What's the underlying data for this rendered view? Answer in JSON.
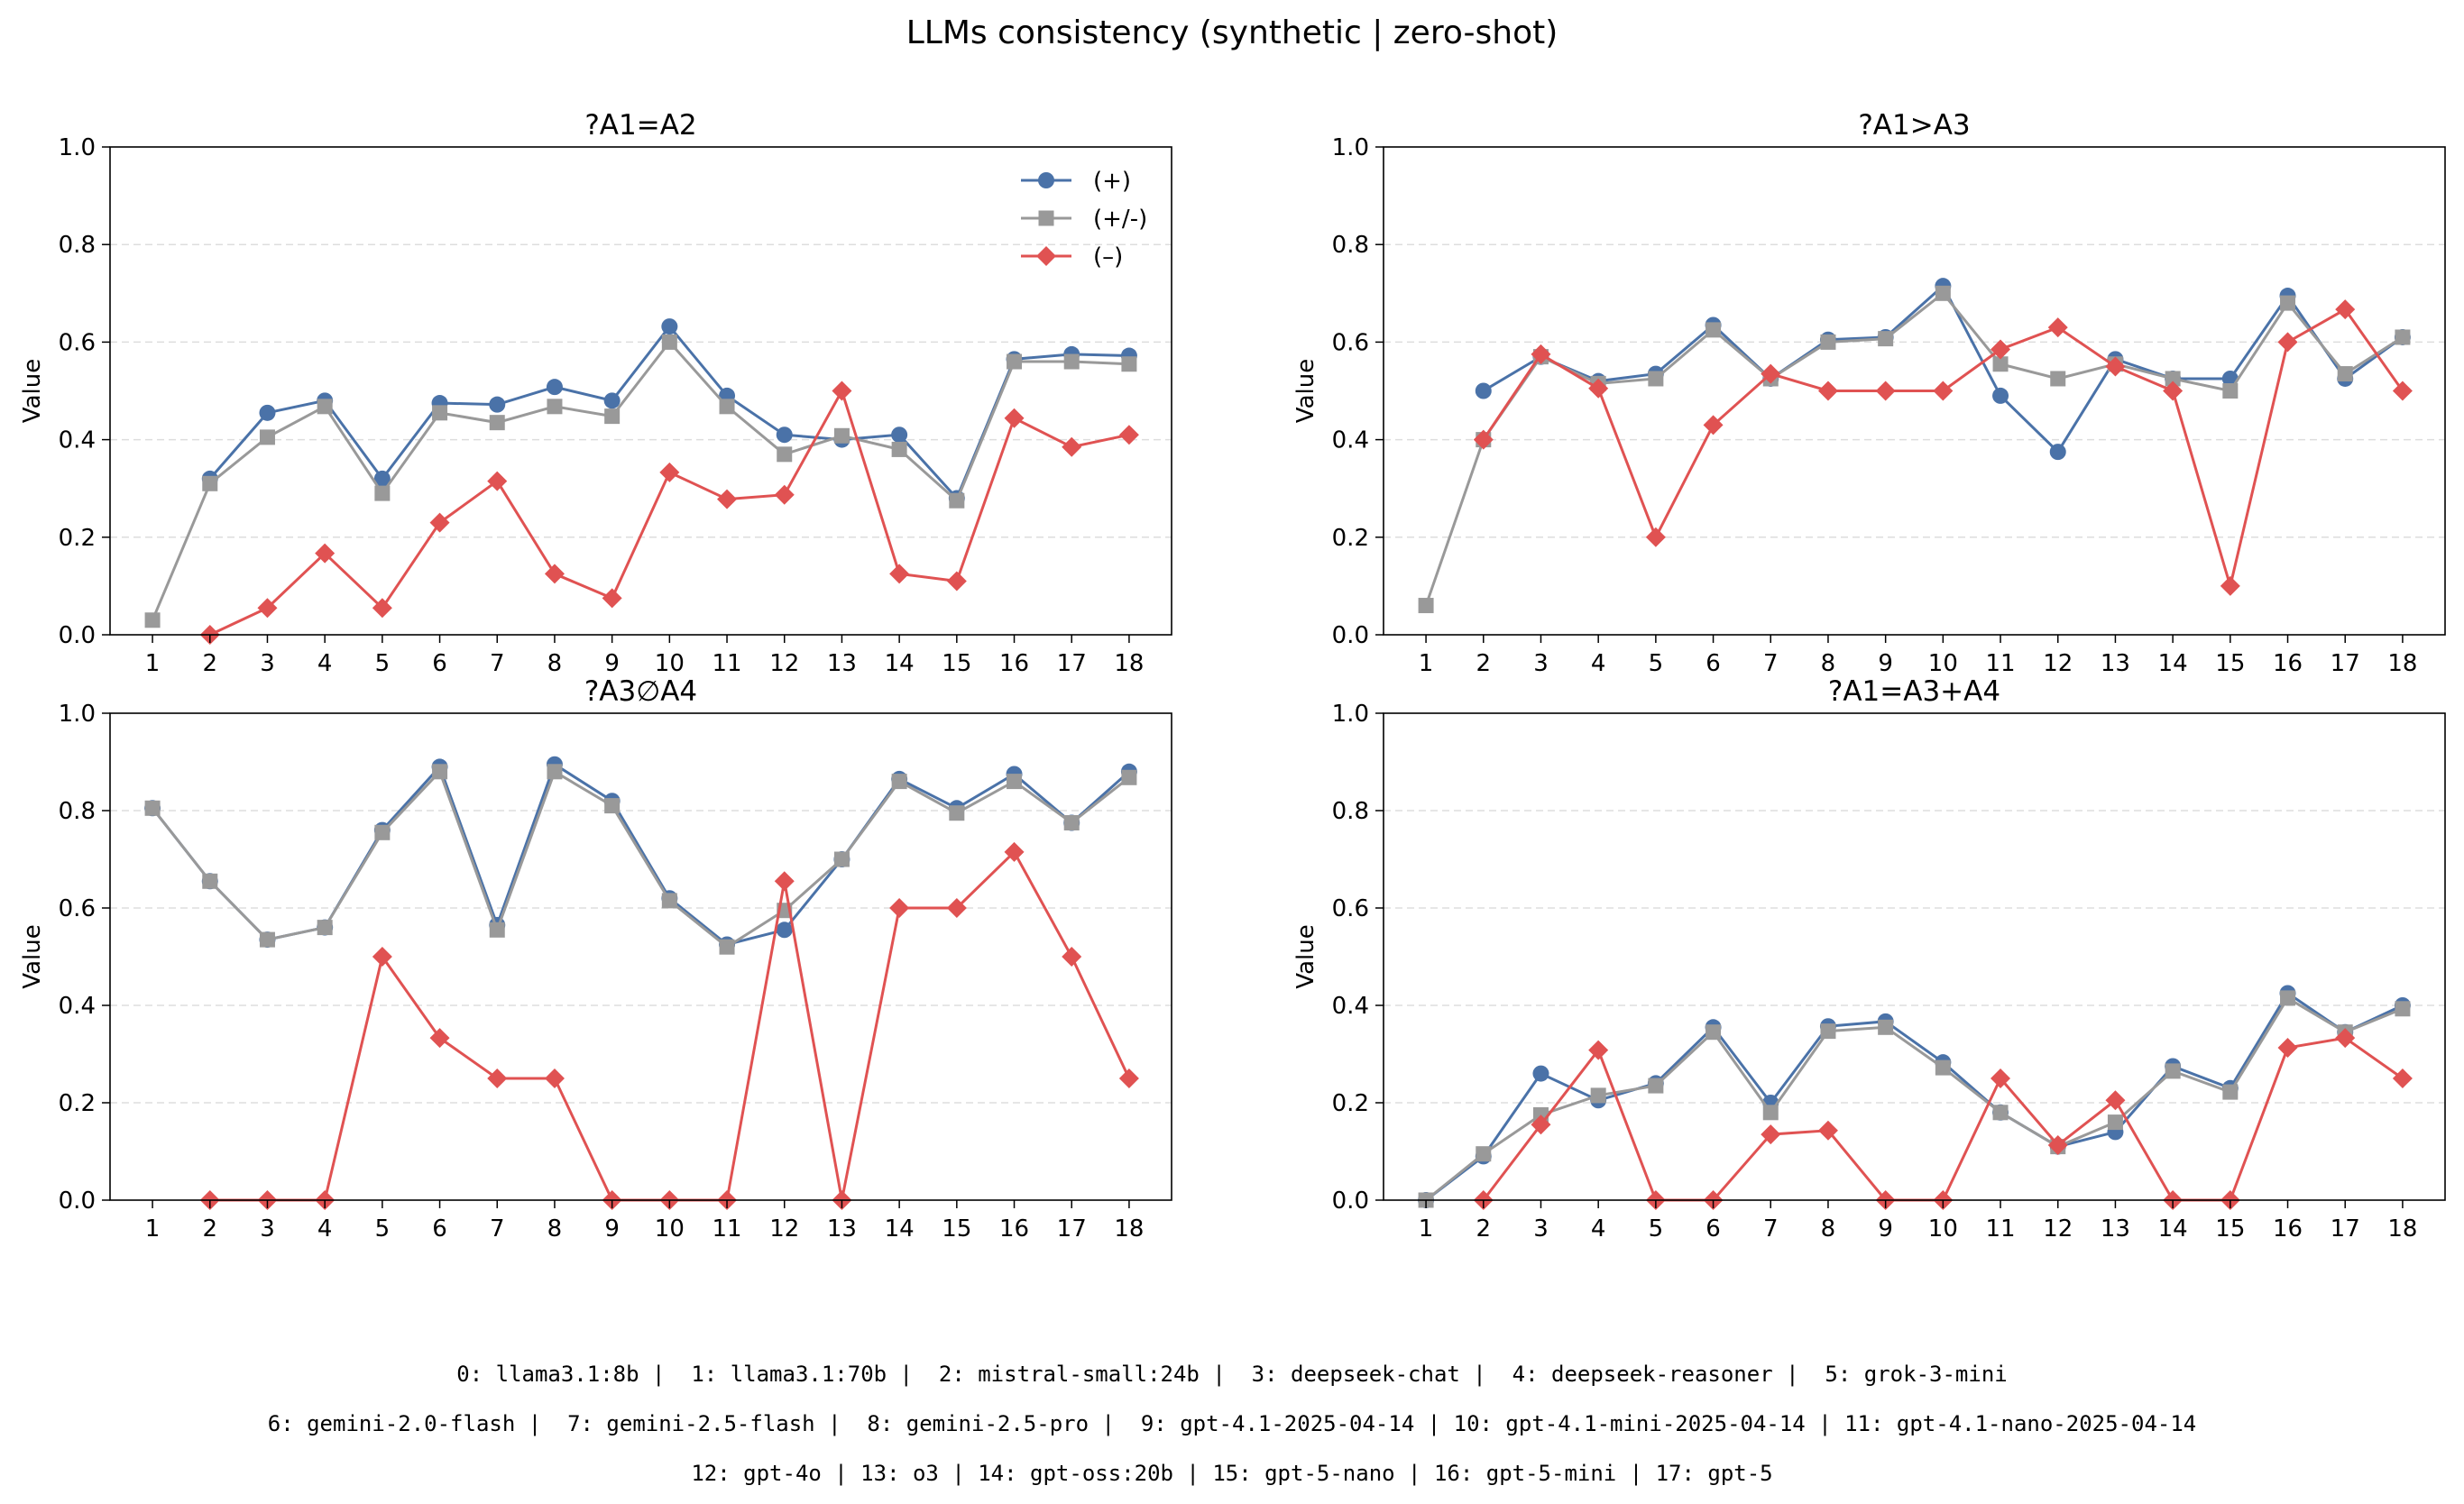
{
  "title": "LLMs consistency (synthetic | zero-shot)",
  "colors": {
    "plus": "#4a72a8",
    "mixed": "#999999",
    "minus": "#e05252",
    "grid": "#dddddd"
  },
  "legend": {
    "placement": "upper-right of first panel",
    "entries": [
      "(+)",
      "(+/-)",
      "(–)"
    ]
  },
  "footer_lines": [
    "0: llama3.1:8b |  1: llama3.1:70b |  2: mistral-small:24b |  3: deepseek-chat |  4: deepseek-reasoner |  5: grok-3-mini",
    "6: gemini-2.0-flash |  7: gemini-2.5-flash |  8: gemini-2.5-pro |  9: gpt-4.1-2025-04-14 | 10: gpt-4.1-mini-2025-04-14 | 11: gpt-4.1-nano-2025-04-14",
    "12: gpt-4o | 13: o3 | 14: gpt-oss:20b | 15: gpt-5-nano | 16: gpt-5-mini | 17: gpt-5"
  ],
  "chart_data": [
    {
      "type": "line",
      "title": "?A1=A2",
      "ylabel": "Value",
      "ylim": [
        0,
        1
      ],
      "grid": "y",
      "x": [
        1,
        2,
        3,
        4,
        5,
        6,
        7,
        8,
        9,
        10,
        11,
        12,
        13,
        14,
        15,
        16,
        17,
        18
      ],
      "yticks": [
        "0.0",
        "0.2",
        "0.4",
        "0.6",
        "0.8",
        "1.0"
      ],
      "series": [
        {
          "name": "(+)",
          "marker": "circle",
          "values": [
            null,
            0.32,
            0.455,
            0.48,
            0.32,
            0.475,
            0.472,
            0.508,
            0.48,
            0.632,
            0.49,
            0.41,
            0.4,
            0.41,
            0.28,
            0.565,
            0.575,
            0.572
          ]
        },
        {
          "name": "(+/-)",
          "marker": "square",
          "values": [
            0.03,
            0.31,
            0.405,
            0.468,
            0.29,
            0.455,
            0.435,
            0.468,
            0.448,
            0.6,
            0.468,
            0.37,
            0.408,
            0.38,
            0.275,
            0.56,
            0.56,
            0.555
          ]
        },
        {
          "name": "(–)",
          "marker": "diamond",
          "values": [
            null,
            0.0,
            0.055,
            0.167,
            0.055,
            0.23,
            0.315,
            0.125,
            0.075,
            0.333,
            0.278,
            0.287,
            0.5,
            0.125,
            0.11,
            0.444,
            0.385,
            0.41
          ]
        }
      ]
    },
    {
      "type": "line",
      "title": "?A1>A3",
      "ylabel": "Value",
      "ylim": [
        0,
        1
      ],
      "grid": "y",
      "x": [
        1,
        2,
        3,
        4,
        5,
        6,
        7,
        8,
        9,
        10,
        11,
        12,
        13,
        14,
        15,
        16,
        17,
        18
      ],
      "yticks": [
        "0.0",
        "0.2",
        "0.4",
        "0.6",
        "0.8",
        "1.0"
      ],
      "series": [
        {
          "name": "(+)",
          "marker": "circle",
          "values": [
            null,
            0.5,
            0.57,
            0.52,
            0.535,
            0.635,
            0.525,
            0.605,
            0.61,
            0.715,
            0.49,
            0.375,
            0.565,
            0.525,
            0.525,
            0.695,
            0.525,
            0.61
          ]
        },
        {
          "name": "(+/-)",
          "marker": "square",
          "values": [
            0.06,
            0.4,
            0.57,
            0.515,
            0.525,
            0.625,
            0.525,
            0.6,
            0.607,
            0.7,
            0.555,
            0.525,
            0.555,
            0.525,
            0.5,
            0.68,
            0.535,
            0.61
          ]
        },
        {
          "name": "(–)",
          "marker": "diamond",
          "values": [
            null,
            0.4,
            0.575,
            0.505,
            0.2,
            0.43,
            0.535,
            0.5,
            0.5,
            0.5,
            0.585,
            0.63,
            0.55,
            0.5,
            0.1,
            0.6,
            0.667,
            0.5
          ]
        }
      ]
    },
    {
      "type": "line",
      "title": "?A3∅A4",
      "ylabel": "Value",
      "ylim": [
        0,
        1
      ],
      "grid": "y",
      "x": [
        1,
        2,
        3,
        4,
        5,
        6,
        7,
        8,
        9,
        10,
        11,
        12,
        13,
        14,
        15,
        16,
        17,
        18
      ],
      "yticks": [
        "0.0",
        "0.2",
        "0.4",
        "0.6",
        "0.8",
        "1.0"
      ],
      "series": [
        {
          "name": "(+)",
          "marker": "circle",
          "values": [
            0.805,
            0.655,
            0.535,
            0.56,
            0.76,
            0.89,
            0.565,
            0.895,
            0.82,
            0.62,
            0.525,
            0.555,
            0.7,
            0.865,
            0.805,
            0.875,
            0.775,
            0.88
          ]
        },
        {
          "name": "(+/-)",
          "marker": "square",
          "values": [
            0.805,
            0.655,
            0.535,
            0.56,
            0.755,
            0.88,
            0.555,
            0.88,
            0.81,
            0.615,
            0.52,
            0.595,
            0.7,
            0.86,
            0.795,
            0.86,
            0.775,
            0.868
          ]
        },
        {
          "name": "(–)",
          "marker": "diamond",
          "values": [
            null,
            0.0,
            0.0,
            0.0,
            0.5,
            0.333,
            0.25,
            0.25,
            0.0,
            0.0,
            0.0,
            0.655,
            0.0,
            0.6,
            0.6,
            0.715,
            0.5,
            0.25
          ]
        }
      ]
    },
    {
      "type": "line",
      "title": "?A1=A3+A4",
      "ylabel": "Value",
      "ylim": [
        0,
        1
      ],
      "grid": "y",
      "x": [
        1,
        2,
        3,
        4,
        5,
        6,
        7,
        8,
        9,
        10,
        11,
        12,
        13,
        14,
        15,
        16,
        17,
        18
      ],
      "yticks": [
        "0.0",
        "0.2",
        "0.4",
        "0.6",
        "0.8",
        "1.0"
      ],
      "series": [
        {
          "name": "(+)",
          "marker": "circle",
          "values": [
            0.0,
            0.09,
            0.26,
            0.205,
            0.24,
            0.355,
            0.2,
            0.357,
            0.367,
            0.283,
            0.18,
            0.11,
            0.14,
            0.275,
            0.23,
            0.425,
            0.345,
            0.4
          ]
        },
        {
          "name": "(+/-)",
          "marker": "square",
          "values": [
            0.0,
            0.095,
            0.175,
            0.215,
            0.235,
            0.345,
            0.18,
            0.347,
            0.355,
            0.272,
            0.18,
            0.11,
            0.16,
            0.265,
            0.222,
            0.415,
            0.345,
            0.393
          ]
        },
        {
          "name": "(–)",
          "marker": "diamond",
          "values": [
            null,
            0.0,
            0.155,
            0.308,
            0.0,
            0.0,
            0.135,
            0.143,
            0.0,
            0.0,
            0.25,
            0.113,
            0.205,
            0.0,
            0.0,
            0.313,
            0.333,
            0.25
          ]
        }
      ]
    }
  ]
}
